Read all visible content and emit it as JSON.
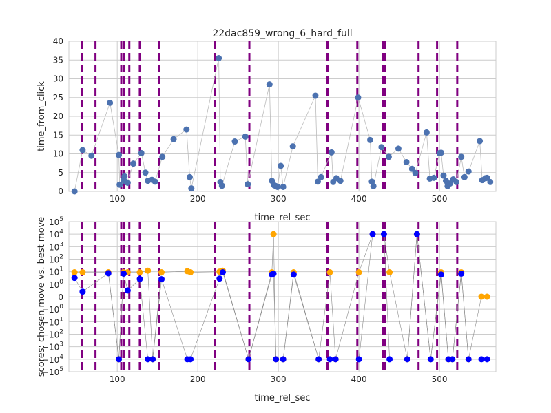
{
  "chart_data": [
    {
      "type": "scatter",
      "title": "22dac859_wrong_6_hard_full",
      "xlabel": "time_rel_sec",
      "ylabel": "time_from_click",
      "xlim": [
        40,
        570
      ],
      "ylim": [
        0,
        40
      ],
      "x_ticks": [
        100,
        200,
        300,
        400,
        500
      ],
      "y_ticks": [
        0,
        5,
        10,
        15,
        20,
        25,
        30,
        35,
        40
      ],
      "grid": true,
      "series_color": "#4c72b0",
      "line_color": "#bbbbbb",
      "vline_color": "#800080",
      "vlines": [
        56,
        73,
        105,
        108,
        115,
        128,
        152,
        221,
        264,
        361,
        398,
        430,
        432,
        474,
        497,
        522
      ],
      "points": [
        [
          47,
          0
        ],
        [
          57,
          11
        ],
        [
          68,
          9.5
        ],
        [
          91,
          23.6
        ],
        [
          102,
          9.7
        ],
        [
          103,
          1.8
        ],
        [
          108,
          3
        ],
        [
          109,
          4
        ],
        [
          111,
          2.5
        ],
        [
          113,
          2.3
        ],
        [
          120,
          7.4
        ],
        [
          130,
          10.2
        ],
        [
          135,
          5
        ],
        [
          138,
          2.8
        ],
        [
          143,
          3.1
        ],
        [
          147,
          2.6
        ],
        [
          156,
          9.2
        ],
        [
          170,
          13.9
        ],
        [
          186,
          16.5
        ],
        [
          190,
          3.8
        ],
        [
          192,
          0.8
        ],
        [
          226,
          35.5
        ],
        [
          228,
          2.5
        ],
        [
          230,
          1.5
        ],
        [
          246,
          13.3
        ],
        [
          259,
          14.6
        ],
        [
          262,
          1.9
        ],
        [
          289,
          28.5
        ],
        [
          292,
          2.8
        ],
        [
          295,
          1.6
        ],
        [
          297,
          1.4
        ],
        [
          299,
          1.2
        ],
        [
          303,
          6.8
        ],
        [
          306,
          1.2
        ],
        [
          318,
          12
        ],
        [
          346,
          25.5
        ],
        [
          349,
          2.6
        ],
        [
          353,
          3.8
        ],
        [
          366,
          10.4
        ],
        [
          368,
          2.5
        ],
        [
          372,
          3.5
        ],
        [
          377,
          2.8
        ],
        [
          399,
          25
        ],
        [
          414,
          13.7
        ],
        [
          416,
          2.6
        ],
        [
          418,
          1.4
        ],
        [
          428,
          11.8
        ],
        [
          437,
          9.2
        ],
        [
          449,
          11.4
        ],
        [
          459,
          7.8
        ],
        [
          466,
          6
        ],
        [
          470,
          4.9
        ],
        [
          484,
          15.7
        ],
        [
          488,
          3.4
        ],
        [
          493,
          3.6
        ],
        [
          500,
          10.2
        ],
        [
          502,
          10.3
        ],
        [
          505,
          4.2
        ],
        [
          508,
          2.8
        ],
        [
          510,
          1.4
        ],
        [
          513,
          2.1
        ],
        [
          517,
          3.2
        ],
        [
          521,
          2.5
        ],
        [
          527,
          9.2
        ],
        [
          531,
          3.8
        ],
        [
          536,
          5.3
        ],
        [
          550,
          13.4
        ],
        [
          553,
          3
        ],
        [
          557,
          3.5
        ],
        [
          559,
          3.6
        ],
        [
          563,
          2.5
        ]
      ]
    },
    {
      "type": "scatter",
      "title": "",
      "xlabel": "time_rel_sec",
      "ylabel": "scores: chosen move vs. best move",
      "xlim": [
        40,
        570
      ],
      "yscale": "symlog",
      "ylim": [
        -100000,
        100000
      ],
      "x_ticks": [
        100,
        200,
        300,
        400,
        500
      ],
      "y_ticks": [
        {
          "v": 100000,
          "label": "10",
          "exp": "5"
        },
        {
          "v": 10000,
          "label": "10",
          "exp": "4"
        },
        {
          "v": 1000,
          "label": "10",
          "exp": "3"
        },
        {
          "v": 100,
          "label": "10",
          "exp": "2"
        },
        {
          "v": 10,
          "label": "10",
          "exp": "1"
        },
        {
          "v": 1,
          "label": "10",
          "exp": "0"
        },
        {
          "v": 0,
          "label": "0",
          "exp": ""
        },
        {
          "v": -1,
          "label": "−10",
          "exp": "0"
        },
        {
          "v": -10,
          "label": "−10",
          "exp": "1"
        },
        {
          "v": -100,
          "label": "−10",
          "exp": "2"
        },
        {
          "v": -1000,
          "label": "−10",
          "exp": "3"
        },
        {
          "v": -10000,
          "label": "−10",
          "exp": "4"
        },
        {
          "v": -100000,
          "label": "−10",
          "exp": "5"
        }
      ],
      "grid": true,
      "vline_color": "#800080",
      "vlines": [
        56,
        73,
        105,
        108,
        115,
        128,
        152,
        221,
        264,
        361,
        398,
        430,
        432,
        474,
        497,
        522
      ],
      "series": [
        {
          "color": "#ffa500",
          "points": [
            [
              47,
              9
            ],
            [
              57,
              9
            ],
            [
              89,
              9
            ],
            [
              102,
              -10000
            ],
            [
              108,
              9
            ],
            [
              113,
              9
            ],
            [
              128,
              9
            ],
            [
              138,
              12
            ],
            [
              144,
              -10000
            ],
            [
              155,
              9
            ],
            [
              187,
              11
            ],
            [
              191,
              9
            ],
            [
              227,
              10
            ],
            [
              231,
              12
            ],
            [
              263,
              -10000
            ],
            [
              292,
              9
            ],
            [
              294,
              10000
            ],
            [
              297,
              -10000
            ],
            [
              306,
              -10000
            ],
            [
              319,
              9
            ],
            [
              350,
              -10000
            ],
            [
              364,
              9
            ],
            [
              371,
              -10000
            ],
            [
              400,
              9
            ],
            [
              417,
              10000
            ],
            [
              431,
              10000
            ],
            [
              438,
              9
            ],
            [
              460,
              -10000
            ],
            [
              472,
              10000
            ],
            [
              489,
              -10000
            ],
            [
              502,
              9
            ],
            [
              511,
              -10000
            ],
            [
              516,
              -10000
            ],
            [
              527,
              9
            ],
            [
              536,
              -10000
            ],
            [
              552,
              0
            ],
            [
              559,
              0
            ]
          ]
        },
        {
          "color": "#0000ff",
          "points": [
            [
              47,
              3.2
            ],
            [
              57,
              0.4
            ],
            [
              89,
              7.5
            ],
            [
              102,
              -10000
            ],
            [
              108,
              7
            ],
            [
              113,
              0.5
            ],
            [
              128,
              2.6
            ],
            [
              138,
              -10000
            ],
            [
              144,
              -10000
            ],
            [
              155,
              2.5
            ],
            [
              187,
              -10000
            ],
            [
              191,
              -10000
            ],
            [
              227,
              2.8
            ],
            [
              231,
              9
            ],
            [
              263,
              -10000
            ],
            [
              292,
              6
            ],
            [
              294,
              7
            ],
            [
              297,
              -10000
            ],
            [
              306,
              -10000
            ],
            [
              319,
              6
            ],
            [
              350,
              -10000
            ],
            [
              364,
              -10000
            ],
            [
              371,
              -10000
            ],
            [
              400,
              -10000
            ],
            [
              417,
              10000
            ],
            [
              431,
              10000
            ],
            [
              438,
              -10000
            ],
            [
              460,
              -10000
            ],
            [
              472,
              10000
            ],
            [
              489,
              -10000
            ],
            [
              502,
              6
            ],
            [
              511,
              -10000
            ],
            [
              516,
              -10000
            ],
            [
              527,
              7
            ],
            [
              536,
              -10000
            ],
            [
              552,
              -10000
            ],
            [
              559,
              -10000
            ]
          ]
        }
      ]
    }
  ]
}
